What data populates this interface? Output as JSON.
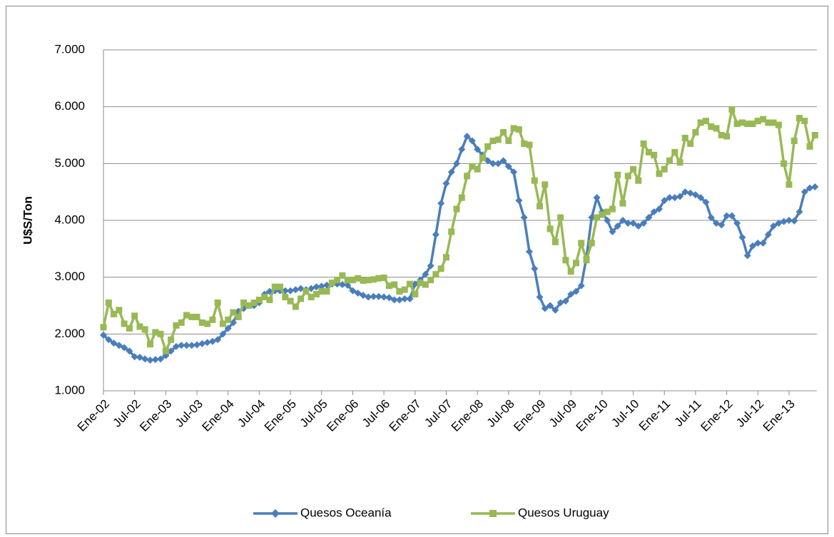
{
  "chart_data": {
    "type": "line",
    "categories": [
      "Ene-02",
      null,
      null,
      null,
      null,
      null,
      "Jul-02",
      null,
      null,
      null,
      null,
      null,
      "Ene-03",
      null,
      null,
      null,
      null,
      null,
      "Jul-03",
      null,
      null,
      null,
      null,
      null,
      "Ene-04",
      null,
      null,
      null,
      null,
      null,
      "Jul-04",
      null,
      null,
      null,
      null,
      null,
      "Ene-05",
      null,
      null,
      null,
      null,
      null,
      "Jul-05",
      null,
      null,
      null,
      null,
      null,
      "Ene-06",
      null,
      null,
      null,
      null,
      null,
      "Jul-06",
      null,
      null,
      null,
      null,
      null,
      "Ene-07",
      null,
      null,
      null,
      null,
      null,
      "Jul-07",
      null,
      null,
      null,
      null,
      null,
      "Ene-08",
      null,
      null,
      null,
      null,
      null,
      "Jul-08",
      null,
      null,
      null,
      null,
      null,
      "Ene-09",
      null,
      null,
      null,
      null,
      null,
      "Jul-09",
      null,
      null,
      null,
      null,
      null,
      "Ene-10",
      null,
      null,
      null,
      null,
      null,
      "Jul-10",
      null,
      null,
      null,
      null,
      null,
      "Ene-11",
      null,
      null,
      null,
      null,
      null,
      "Jul-11",
      null,
      null,
      null,
      null,
      null,
      "Ene-12",
      null,
      null,
      null,
      null,
      null,
      "Jul-12",
      null,
      null,
      null,
      null,
      null,
      "Ene-13",
      null,
      null,
      null,
      null,
      null
    ],
    "series": [
      {
        "name": "Quesos Oceanía",
        "color": "#4a7ebb",
        "marker": "diamond",
        "values": [
          1980,
          1900,
          1840,
          1800,
          1760,
          1700,
          1600,
          1590,
          1560,
          1540,
          1550,
          1560,
          1620,
          1700,
          1780,
          1800,
          1800,
          1800,
          1810,
          1830,
          1850,
          1870,
          1900,
          2000,
          2100,
          2200,
          2400,
          2450,
          2500,
          2500,
          2550,
          2700,
          2750,
          2760,
          2760,
          2760,
          2760,
          2780,
          2800,
          2780,
          2800,
          2830,
          2840,
          2860,
          2880,
          2880,
          2870,
          2860,
          2760,
          2720,
          2680,
          2650,
          2660,
          2660,
          2650,
          2640,
          2600,
          2600,
          2620,
          2620,
          2880,
          2950,
          3050,
          3200,
          3750,
          4300,
          4650,
          4850,
          5000,
          5250,
          5480,
          5400,
          5250,
          5150,
          5050,
          5000,
          5000,
          5050,
          4950,
          4850,
          4350,
          4050,
          3450,
          3150,
          2650,
          2450,
          2500,
          2420,
          2550,
          2580,
          2700,
          2750,
          2850,
          3350,
          4050,
          4400,
          4150,
          4000,
          3800,
          3900,
          4000,
          3950,
          3950,
          3900,
          3950,
          4050,
          4150,
          4200,
          4350,
          4400,
          4400,
          4420,
          4500,
          4480,
          4450,
          4400,
          4320,
          4050,
          3950,
          3920,
          4080,
          4080,
          3950,
          3700,
          3380,
          3550,
          3600,
          3600,
          3750,
          3900,
          3950,
          3980,
          4000,
          3990,
          4150,
          4500,
          4570,
          4590
        ]
      },
      {
        "name": "Quesos Uruguay",
        "color": "#98b954",
        "marker": "square",
        "values": [
          2120,
          2550,
          2350,
          2420,
          2180,
          2100,
          2320,
          2130,
          2080,
          1820,
          2030,
          2000,
          1700,
          1900,
          2150,
          2200,
          2330,
          2300,
          2300,
          2200,
          2180,
          2250,
          2550,
          2180,
          2250,
          2380,
          2300,
          2550,
          2500,
          2550,
          2600,
          2650,
          2600,
          2830,
          2830,
          2650,
          2580,
          2480,
          2620,
          2750,
          2650,
          2700,
          2750,
          2750,
          2900,
          2950,
          3030,
          2950,
          2950,
          2980,
          2940,
          2950,
          2960,
          2980,
          2990,
          2850,
          2870,
          2750,
          2780,
          2880,
          2700,
          2900,
          2870,
          2950,
          3050,
          3150,
          3350,
          3800,
          4200,
          4400,
          4780,
          4950,
          4900,
          5100,
          5300,
          5400,
          5420,
          5550,
          5400,
          5620,
          5600,
          5350,
          5330,
          4700,
          4250,
          4630,
          3850,
          3620,
          4050,
          3300,
          3100,
          3250,
          3600,
          3300,
          3600,
          4050,
          4100,
          4150,
          4200,
          4800,
          4300,
          4780,
          4900,
          4700,
          5350,
          5200,
          5150,
          4820,
          4900,
          5050,
          5200,
          5020,
          5450,
          5350,
          5550,
          5720,
          5750,
          5650,
          5620,
          5500,
          5480,
          5950,
          5700,
          5720,
          5700,
          5700,
          5750,
          5780,
          5720,
          5720,
          5680,
          5000,
          4630,
          5400,
          5800,
          5750,
          5300,
          5500
        ]
      }
    ],
    "y_label": "U$S/Ton",
    "ylim": [
      1000,
      7000
    ],
    "yticks": [
      {
        "value": 1000,
        "label": "1.000"
      },
      {
        "value": 2000,
        "label": "2.000"
      },
      {
        "value": 3000,
        "label": "3.000"
      },
      {
        "value": 4000,
        "label": "4.000"
      },
      {
        "value": 5000,
        "label": "5.000"
      },
      {
        "value": 6000,
        "label": "6.000"
      },
      {
        "value": 7000,
        "label": "7.000"
      }
    ],
    "grid": true,
    "legend": "bottom"
  }
}
